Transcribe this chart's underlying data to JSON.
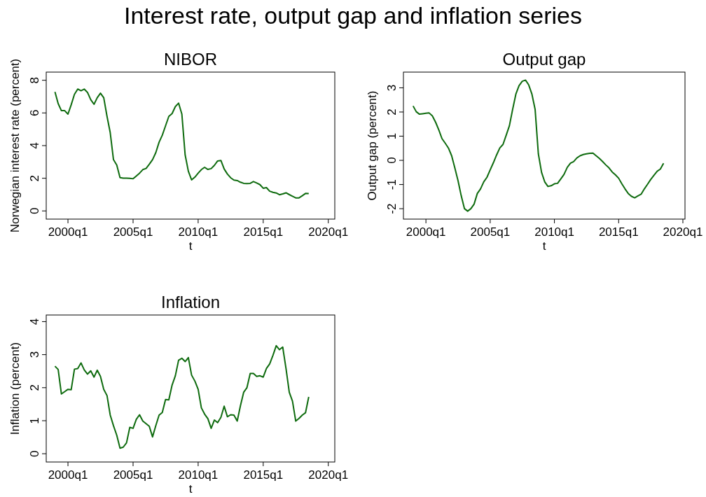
{
  "chart_data": [
    {
      "type": "other",
      "title": "Interest rate, output gap and inflation series"
    },
    {
      "type": "line",
      "title": "NIBOR",
      "xlabel": "t",
      "ylabel": "Norwegian interest rate (percent)",
      "x": [
        "1999-01",
        "1999-04",
        "1999-07",
        "1999-10",
        "2000-01",
        "2000-04",
        "2000-07",
        "2000-10",
        "2001-01",
        "2001-04",
        "2001-07",
        "2001-10",
        "2002-01",
        "2002-04",
        "2002-07",
        "2002-10",
        "2003-01",
        "2003-04",
        "2003-07",
        "2003-10",
        "2004-01",
        "2004-04",
        "2004-07",
        "2004-10",
        "2005-01",
        "2005-04",
        "2005-07",
        "2005-10",
        "2006-01",
        "2006-04",
        "2006-07",
        "2006-10",
        "2007-01",
        "2007-04",
        "2007-07",
        "2007-10",
        "2008-01",
        "2008-04",
        "2008-07",
        "2008-10",
        "2009-01",
        "2009-04",
        "2009-07",
        "2009-10",
        "2010-01",
        "2010-04",
        "2010-07",
        "2010-10",
        "2011-01",
        "2011-04",
        "2011-07",
        "2011-10",
        "2012-01",
        "2012-04",
        "2012-07",
        "2012-10",
        "2013-01",
        "2013-04",
        "2013-07",
        "2013-10",
        "2014-01",
        "2014-04",
        "2014-07",
        "2014-10",
        "2015-01",
        "2015-04",
        "2015-07",
        "2015-10",
        "2016-01",
        "2016-04",
        "2016-07",
        "2016-10",
        "2017-01",
        "2017-04",
        "2017-07",
        "2017-10",
        "2018-01",
        "2018-04",
        "2018-07"
      ],
      "series": [
        {
          "color": "#0e6b0e",
          "values": [
            7.29,
            6.57,
            6.14,
            6.14,
            5.93,
            6.5,
            7.14,
            7.46,
            7.36,
            7.46,
            7.26,
            6.81,
            6.53,
            6.93,
            7.21,
            6.93,
            5.79,
            4.79,
            3.14,
            2.81,
            2.04,
            2.01,
            2.01,
            2.0,
            1.97,
            2.14,
            2.31,
            2.53,
            2.6,
            2.86,
            3.14,
            3.57,
            4.21,
            4.64,
            5.21,
            5.79,
            5.96,
            6.39,
            6.6,
            5.93,
            3.43,
            2.43,
            1.9,
            2.07,
            2.31,
            2.53,
            2.67,
            2.54,
            2.59,
            2.79,
            3.06,
            3.09,
            2.57,
            2.26,
            2.03,
            1.89,
            1.86,
            1.76,
            1.69,
            1.67,
            1.69,
            1.8,
            1.71,
            1.61,
            1.39,
            1.43,
            1.21,
            1.14,
            1.1,
            0.99,
            1.04,
            1.11,
            1.0,
            0.9,
            0.8,
            0.8,
            0.93,
            1.07,
            1.06
          ]
        }
      ],
      "xlim": [
        "1998-05",
        "2020-07"
      ],
      "ylim": [
        -0.5,
        8.5
      ],
      "xticks": [
        {
          "value": "2000-01",
          "label": "2000q1"
        },
        {
          "value": "2005-01",
          "label": "2005q1"
        },
        {
          "value": "2010-01",
          "label": "2010q1"
        },
        {
          "value": "2015-01",
          "label": "2015q1"
        },
        {
          "value": "2020-01",
          "label": "2020q1"
        }
      ],
      "yticks": [
        0,
        2,
        4,
        6,
        8
      ]
    },
    {
      "type": "line",
      "title": "Output gap",
      "xlabel": "t",
      "ylabel": "Output gap (percent)",
      "x": [
        "1999-01",
        "1999-04",
        "1999-07",
        "1999-10",
        "2000-01",
        "2000-04",
        "2000-07",
        "2000-10",
        "2001-01",
        "2001-04",
        "2001-07",
        "2001-10",
        "2002-01",
        "2002-04",
        "2002-07",
        "2002-10",
        "2003-01",
        "2003-04",
        "2003-07",
        "2003-10",
        "2004-01",
        "2004-04",
        "2004-07",
        "2004-10",
        "2005-01",
        "2005-04",
        "2005-07",
        "2005-10",
        "2006-01",
        "2006-04",
        "2006-07",
        "2006-10",
        "2007-01",
        "2007-04",
        "2007-07",
        "2007-10",
        "2008-01",
        "2008-04",
        "2008-07",
        "2008-10",
        "2009-01",
        "2009-04",
        "2009-07",
        "2009-10",
        "2010-01",
        "2010-04",
        "2010-07",
        "2010-10",
        "2011-01",
        "2011-04",
        "2011-07",
        "2011-10",
        "2012-01",
        "2012-04",
        "2012-07",
        "2012-10",
        "2013-01",
        "2013-04",
        "2013-07",
        "2013-10",
        "2014-01",
        "2014-04",
        "2014-07",
        "2014-10",
        "2015-01",
        "2015-04",
        "2015-07",
        "2015-10",
        "2016-01",
        "2016-04",
        "2016-07",
        "2016-10",
        "2017-01",
        "2017-04",
        "2017-07",
        "2017-10",
        "2018-01",
        "2018-04",
        "2018-07"
      ],
      "series": [
        {
          "color": "#0e6b0e",
          "values": [
            2.25,
            2.01,
            1.91,
            1.93,
            1.95,
            1.96,
            1.84,
            1.58,
            1.26,
            0.9,
            0.71,
            0.51,
            0.19,
            -0.31,
            -0.84,
            -1.47,
            -2.0,
            -2.1,
            -2.0,
            -1.81,
            -1.37,
            -1.18,
            -0.89,
            -0.7,
            -0.39,
            -0.1,
            0.22,
            0.51,
            0.66,
            1.04,
            1.43,
            2.11,
            2.74,
            3.09,
            3.27,
            3.32,
            3.12,
            2.74,
            2.11,
            0.27,
            -0.5,
            -0.89,
            -1.08,
            -1.05,
            -0.97,
            -0.95,
            -0.77,
            -0.58,
            -0.29,
            -0.12,
            -0.05,
            0.1,
            0.19,
            0.24,
            0.27,
            0.29,
            0.3,
            0.19,
            0.08,
            -0.05,
            -0.19,
            -0.31,
            -0.48,
            -0.6,
            -0.74,
            -0.97,
            -1.18,
            -1.37,
            -1.49,
            -1.55,
            -1.47,
            -1.4,
            -1.18,
            -0.99,
            -0.79,
            -0.62,
            -0.45,
            -0.36,
            -0.12
          ]
        }
      ],
      "xlim": [
        "1998-04",
        "2020-03"
      ],
      "ylim": [
        -2.43,
        3.65
      ],
      "xticks": [
        {
          "value": "2000-01",
          "label": "2000q1"
        },
        {
          "value": "2005-01",
          "label": "2005q1"
        },
        {
          "value": "2010-01",
          "label": "2010q1"
        },
        {
          "value": "2015-01",
          "label": "2015q1"
        },
        {
          "value": "2020-01",
          "label": "2020q1"
        }
      ],
      "yticks": [
        -2,
        -1,
        0,
        1,
        2,
        3
      ]
    },
    {
      "type": "line",
      "title": "Inflation",
      "xlabel": "t",
      "ylabel": "Inflation (percent)",
      "x": [
        "1999-01",
        "1999-04",
        "1999-07",
        "1999-10",
        "2000-01",
        "2000-04",
        "2000-07",
        "2000-10",
        "2001-01",
        "2001-04",
        "2001-07",
        "2001-10",
        "2002-01",
        "2002-04",
        "2002-07",
        "2002-10",
        "2003-01",
        "2003-04",
        "2003-07",
        "2003-10",
        "2004-01",
        "2004-04",
        "2004-07",
        "2004-10",
        "2005-01",
        "2005-04",
        "2005-07",
        "2005-10",
        "2006-01",
        "2006-04",
        "2006-07",
        "2006-10",
        "2007-01",
        "2007-04",
        "2007-07",
        "2007-10",
        "2008-01",
        "2008-04",
        "2008-07",
        "2008-10",
        "2009-01",
        "2009-04",
        "2009-07",
        "2009-10",
        "2010-01",
        "2010-04",
        "2010-07",
        "2010-10",
        "2011-01",
        "2011-04",
        "2011-07",
        "2011-10",
        "2012-01",
        "2012-04",
        "2012-07",
        "2012-10",
        "2013-01",
        "2013-04",
        "2013-07",
        "2013-10",
        "2014-01",
        "2014-04",
        "2014-07",
        "2014-10",
        "2015-01",
        "2015-04",
        "2015-07",
        "2015-10",
        "2016-01",
        "2016-04",
        "2016-07",
        "2016-10",
        "2017-01",
        "2017-04",
        "2017-07",
        "2017-10",
        "2018-01",
        "2018-04",
        "2018-07"
      ],
      "series": [
        {
          "color": "#0e6b0e",
          "values": [
            2.65,
            2.55,
            1.81,
            1.88,
            1.95,
            1.94,
            2.56,
            2.58,
            2.75,
            2.54,
            2.41,
            2.51,
            2.32,
            2.53,
            2.34,
            1.95,
            1.76,
            1.17,
            0.85,
            0.56,
            0.17,
            0.2,
            0.33,
            0.8,
            0.77,
            1.04,
            1.18,
            0.99,
            0.91,
            0.83,
            0.51,
            0.85,
            1.17,
            1.25,
            1.64,
            1.63,
            2.08,
            2.36,
            2.83,
            2.89,
            2.79,
            2.91,
            2.38,
            2.2,
            1.95,
            1.39,
            1.2,
            1.06,
            0.77,
            1.02,
            0.94,
            1.1,
            1.44,
            1.12,
            1.18,
            1.17,
            0.99,
            1.45,
            1.86,
            2.0,
            2.43,
            2.43,
            2.34,
            2.36,
            2.32,
            2.58,
            2.72,
            2.98,
            3.27,
            3.15,
            3.23,
            2.58,
            1.86,
            1.59,
            0.99,
            1.07,
            1.17,
            1.24,
            1.72
          ]
        }
      ],
      "xlim": [
        "1998-05",
        "2020-07"
      ],
      "ylim": [
        -0.25,
        4.2
      ],
      "xticks": [
        {
          "value": "2000-01",
          "label": "2000q1"
        },
        {
          "value": "2005-01",
          "label": "2005q1"
        },
        {
          "value": "2010-01",
          "label": "2010q1"
        },
        {
          "value": "2015-01",
          "label": "2015q1"
        },
        {
          "value": "2020-01",
          "label": "2020q1"
        }
      ],
      "yticks": [
        0,
        1,
        2,
        3,
        4
      ]
    }
  ]
}
